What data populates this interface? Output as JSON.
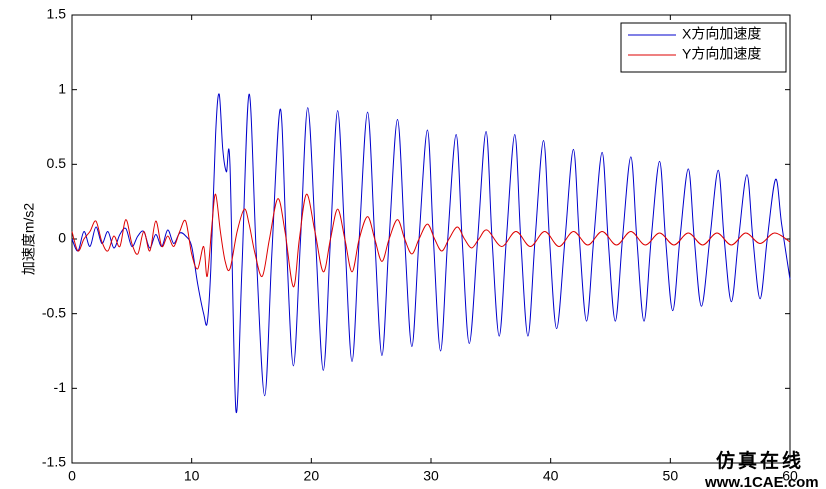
{
  "chart_data": {
    "type": "line",
    "ylabel": "加速度m/s2",
    "xlim": [
      0,
      60
    ],
    "xticks": [
      0,
      10,
      20,
      30,
      40,
      50,
      60
    ],
    "ylim": [
      -1.5,
      1.5
    ],
    "yticks": [
      -1.5,
      -1,
      -0.5,
      0,
      0.5,
      1,
      1.5
    ],
    "grid": false,
    "legend": "upper right",
    "series": [
      {
        "name": "X方向加速度",
        "color": "#0000cc",
        "x": [
          0,
          0.5,
          1,
          1.5,
          2,
          2.5,
          3,
          3.5,
          4,
          4.5,
          5,
          5.5,
          6,
          6.5,
          7,
          7.5,
          8,
          8.5,
          9,
          9.5,
          10,
          10.5,
          11,
          11.3,
          11.6,
          12,
          12.3,
          12.6,
          12.9,
          13.2,
          13.7,
          14.2,
          14.8,
          15.4,
          16.1,
          16.7,
          17.4,
          17.9,
          18.5,
          19.1,
          19.7,
          20.35,
          21,
          21.6,
          22.2,
          22.8,
          23.4,
          24,
          24.7,
          25.3,
          25.9,
          26.5,
          27.2,
          27.8,
          28.4,
          29,
          29.7,
          30.2,
          30.8,
          31.4,
          32.1,
          32.6,
          33.2,
          33.9,
          34.6,
          35.1,
          35.7,
          36.3,
          37,
          37.5,
          38.1,
          38.7,
          39.4,
          39.9,
          40.5,
          41.2,
          41.9,
          42.4,
          43,
          43.6,
          44.3,
          44.8,
          45.4,
          46,
          46.7,
          47.2,
          47.8,
          48.4,
          49.1,
          49.6,
          50.2,
          50.8,
          51.5,
          52,
          52.6,
          53.3,
          54,
          54.5,
          55.1,
          55.7,
          56.4,
          56.9,
          57.5,
          58.1,
          58.8,
          59.3,
          60
        ],
        "values": [
          0,
          -0.08,
          0.05,
          -0.05,
          0.08,
          -0.03,
          0.05,
          -0.06,
          0.03,
          0.07,
          -0.05,
          0.02,
          0.05,
          -0.06,
          0.03,
          -0.05,
          0.06,
          -0.03,
          0.04,
          0.02,
          -0.05,
          -0.3,
          -0.5,
          -0.56,
          -0.2,
          0.7,
          0.97,
          0.6,
          0.45,
          0.5,
          -1.15,
          -0.2,
          0.97,
          -0.1,
          -1.05,
          -0.1,
          0.87,
          0,
          -0.85,
          0,
          0.88,
          0,
          -0.88,
          0,
          0.86,
          0,
          -0.82,
          0,
          0.85,
          0,
          -0.78,
          0,
          0.8,
          0,
          -0.72,
          0,
          0.73,
          0,
          -0.75,
          0,
          0.7,
          0,
          -0.7,
          0,
          0.72,
          0,
          -0.65,
          0,
          0.7,
          0,
          -0.65,
          0,
          0.66,
          0,
          -0.6,
          0,
          0.6,
          0,
          -0.55,
          0,
          0.58,
          0,
          -0.55,
          0,
          0.55,
          0,
          -0.55,
          0,
          0.52,
          0,
          -0.48,
          0,
          0.47,
          0,
          -0.45,
          0,
          0.46,
          0,
          -0.42,
          0,
          0.43,
          0,
          -0.4,
          0,
          0.4,
          0.1,
          -0.27
        ]
      },
      {
        "name": "Y方向加速度",
        "color": "#dd0000",
        "x": [
          0,
          0.5,
          1,
          1.5,
          2,
          2.5,
          3,
          3.5,
          4,
          4.5,
          5,
          5.5,
          6,
          6.5,
          7,
          7.5,
          8,
          8.5,
          9,
          9.5,
          10,
          10.5,
          11,
          11.3,
          11.7,
          12,
          12.4,
          12.8,
          13.2,
          13.8,
          14.4,
          14.8,
          15.3,
          15.9,
          16.5,
          17.2,
          17.8,
          18.5,
          19,
          19.6,
          20.3,
          21,
          21.6,
          22.2,
          22.8,
          23.4,
          24,
          24.7,
          25.3,
          25.9,
          26.5,
          27.2,
          27.8,
          28.4,
          29,
          29.7,
          30.3,
          30.9,
          31.5,
          32.2,
          32.8,
          33.4,
          34,
          34.7,
          35.9,
          37.1,
          38.3,
          39.5,
          40.7,
          41.9,
          43.1,
          44.3,
          45.5,
          46.7,
          47.9,
          49.1,
          50.3,
          51.5,
          52.7,
          53.9,
          55.1,
          56.3,
          57.5,
          58.7,
          60
        ],
        "values": [
          0.05,
          -0.08,
          0,
          0.05,
          0.12,
          -0.02,
          -0.08,
          0.02,
          -0.05,
          0.13,
          -0.03,
          -0.1,
          0.05,
          -0.08,
          0.12,
          -0.05,
          0.02,
          -0.05,
          0.05,
          0.12,
          -0.1,
          -0.2,
          -0.05,
          -0.25,
          0.1,
          0.3,
          0.05,
          -0.15,
          -0.2,
          0.05,
          0.2,
          0.1,
          -0.1,
          -0.25,
          0,
          0.27,
          0.05,
          -0.32,
          0,
          0.3,
          0.05,
          -0.22,
          0,
          0.2,
          0,
          -0.22,
          0,
          0.15,
          0,
          -0.15,
          0,
          0.13,
          0,
          -0.1,
          0,
          0.1,
          0,
          -0.08,
          0,
          0.08,
          0,
          -0.06,
          0,
          0.06,
          -0.05,
          0.05,
          -0.05,
          0.05,
          -0.05,
          0.05,
          -0.04,
          0.05,
          -0.04,
          0.05,
          -0.04,
          0.04,
          -0.04,
          0.04,
          -0.04,
          0.04,
          -0.04,
          0.04,
          -0.03,
          0.04,
          -0.02
        ]
      }
    ]
  },
  "watermark": {
    "title": "仿真在线",
    "url": "www.1CAE.com"
  }
}
